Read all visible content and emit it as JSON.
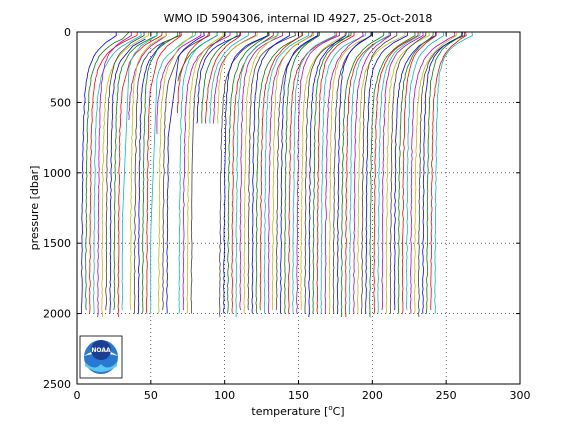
{
  "chart_data": {
    "type": "line",
    "title": "WMO ID 5904306, internal ID 4927, 25-Oct-2018",
    "xlabel_prefix": "temperature [",
    "xlabel_unit_sup": "o",
    "xlabel_suffix": "C]",
    "ylabel": "pressure [dbar]",
    "xlim": [
      0,
      300
    ],
    "ylim": [
      0,
      2500
    ],
    "y_reversed": true,
    "grid": true,
    "grid_style": "dotted",
    "xticks": [
      0,
      50,
      100,
      150,
      200,
      250,
      300
    ],
    "yticks": [
      0,
      500,
      1000,
      1500,
      2000,
      2500
    ],
    "logo_text": "NOAA",
    "series_colors": [
      "#0000ff",
      "#008000",
      "#ff0000",
      "#00bfbf",
      "#bf00bf",
      "#bfbf00",
      "#404040"
    ],
    "profile_count": 88,
    "profile_offset_step": 2.75,
    "profile_base_temperature": 5.5,
    "profile_surface_warming": 25,
    "profile_gaps": [
      [
        31,
        35
      ],
      [
        50,
        54
      ],
      [
        62,
        68
      ],
      [
        78,
        96
      ]
    ],
    "profile_gap_top_pressure": [
      [
        78,
        96,
        670
      ]
    ],
    "profile_bottom_pressure": 2000
  }
}
